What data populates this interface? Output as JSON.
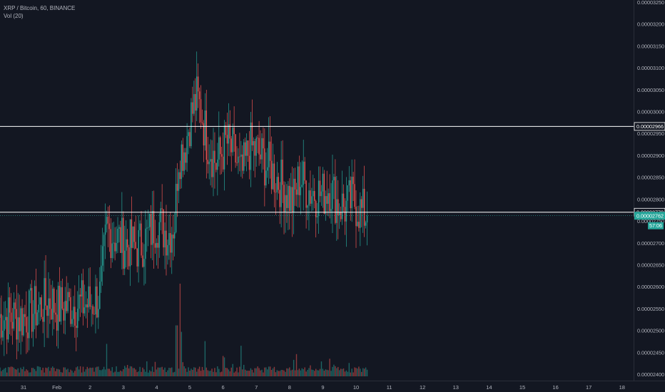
{
  "legend": {
    "title": "XRP / Bitcoin, 60, BINANCE",
    "indicator": "Vol (20)"
  },
  "colors": {
    "background": "#131722",
    "up": "#26a69a",
    "down": "#ef5350",
    "text": "#b2b5be",
    "price_tag": "#26a69a",
    "hline": "#ffffff"
  },
  "chart_data": {
    "type": "candlestick",
    "symbol": "XRP / Bitcoin",
    "interval": "60",
    "exchange": "BINANCE",
    "indicator": "Vol (20)",
    "x_ticks": [
      "31",
      "Feb",
      "2",
      "3",
      "4",
      "5",
      "6",
      "7",
      "8",
      "9",
      "10",
      "11",
      "12",
      "13",
      "14",
      "15",
      "16",
      "17",
      "18"
    ],
    "y_ticks": [
      "0.00003250",
      "0.00003200",
      "0.00003150",
      "0.00003100",
      "0.00003050",
      "0.00003000",
      "0.00002950",
      "0.00002900",
      "0.00002850",
      "0.00002800",
      "0.00002750",
      "0.00002700",
      "0.00002650",
      "0.00002600",
      "0.00002550",
      "0.00002500",
      "0.00002450",
      "0.00002400"
    ],
    "ylim": [
      2.4e-05,
      3.25e-05
    ],
    "horizontal_lines": [
      {
        "price": 2.966e-05,
        "label": "0.00002966"
      },
      {
        "price": 2.77e-05,
        "label": "0.00002770"
      }
    ],
    "last_price": {
      "price": 2.762e-05,
      "label": "0.00002762",
      "countdown": "57:06"
    },
    "anchors": [
      {
        "t": 0,
        "p": 2.53e-05
      },
      {
        "t": 0.8,
        "p": 2.57e-05
      },
      {
        "t": 1.0,
        "p": 2.55e-05
      },
      {
        "t": 1.5,
        "p": 2.56e-05
      },
      {
        "t": 2.0,
        "p": 2.56e-05
      },
      {
        "t": 2.3,
        "p": 2.58e-05
      },
      {
        "t": 2.5,
        "p": 2.73e-05
      },
      {
        "t": 3.0,
        "p": 2.7e-05
      },
      {
        "t": 3.4,
        "p": 2.69e-05
      },
      {
        "t": 3.7,
        "p": 2.71e-05
      },
      {
        "t": 4.0,
        "p": 2.75e-05
      },
      {
        "t": 4.35,
        "p": 2.72e-05
      },
      {
        "t": 4.55,
        "p": 2.75e-05
      },
      {
        "t": 4.65,
        "p": 2.9e-05
      },
      {
        "t": 4.85,
        "p": 2.92e-05
      },
      {
        "t": 5.0,
        "p": 2.98e-05
      },
      {
        "t": 5.2,
        "p": 3.03e-05
      },
      {
        "t": 5.35,
        "p": 3e-05
      },
      {
        "t": 5.5,
        "p": 2.94e-05
      },
      {
        "t": 5.8,
        "p": 2.88e-05
      },
      {
        "t": 6.1,
        "p": 2.93e-05
      },
      {
        "t": 6.35,
        "p": 2.9e-05
      },
      {
        "t": 6.55,
        "p": 2.85e-05
      },
      {
        "t": 6.8,
        "p": 2.92e-05
      },
      {
        "t": 7.0,
        "p": 2.91e-05
      },
      {
        "t": 7.4,
        "p": 2.87e-05
      },
      {
        "t": 7.7,
        "p": 2.84e-05
      },
      {
        "t": 7.9,
        "p": 2.82e-05
      },
      {
        "t": 8.1,
        "p": 2.79e-05
      },
      {
        "t": 8.3,
        "p": 2.85e-05
      },
      {
        "t": 8.6,
        "p": 2.82e-05
      },
      {
        "t": 9.0,
        "p": 2.81e-05
      },
      {
        "t": 9.2,
        "p": 2.83e-05
      },
      {
        "t": 9.45,
        "p": 2.79e-05
      },
      {
        "t": 9.7,
        "p": 2.78e-05
      },
      {
        "t": 9.9,
        "p": 2.8e-05
      },
      {
        "t": 10.15,
        "p": 2.77e-05
      },
      {
        "t": 10.35,
        "p": 2.762e-05
      }
    ],
    "volume_spikes": [
      {
        "t": 2.5,
        "v": 0.35
      },
      {
        "t": 4.6,
        "v": 0.55
      },
      {
        "t": 4.7,
        "v": 1.0
      },
      {
        "t": 4.75,
        "v": 0.48
      },
      {
        "t": 5.45,
        "v": 0.38
      },
      {
        "t": 6.55,
        "v": 0.33
      },
      {
        "t": 6.0,
        "v": 0.22
      },
      {
        "t": 8.2,
        "v": 0.24
      },
      {
        "t": 9.2,
        "v": 0.19
      }
    ]
  }
}
